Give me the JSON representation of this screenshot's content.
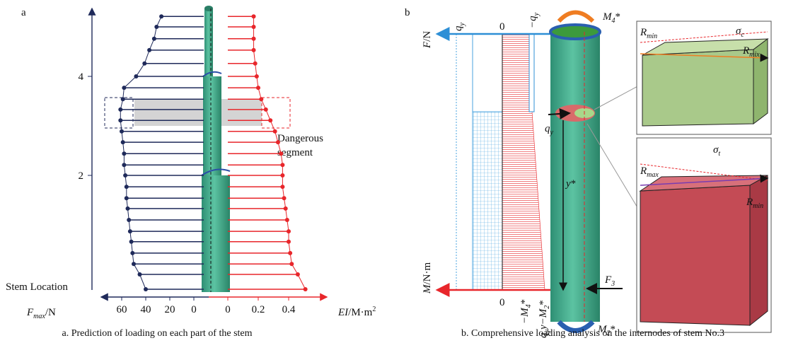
{
  "chart_data": {
    "type": "lollipop",
    "panel": "a",
    "ylabel": "Stem Location",
    "ylim": [
      -0.4,
      5.4
    ],
    "yticks": [
      2,
      4
    ],
    "locations": [
      5.21,
      5.0,
      4.76,
      4.53,
      4.26,
      4.0,
      3.77,
      3.54,
      3.33,
      3.11,
      2.89,
      2.67,
      2.44,
      2.21,
      2.0,
      1.77,
      1.54,
      1.33,
      1.1,
      0.87,
      0.66,
      0.43,
      0.21,
      0,
      -0.3
    ],
    "series": [
      {
        "name": [
          "F",
          "max",
          "/N"
        ],
        "color": "#1f2a5a",
        "side": "left",
        "xlim": [
          0,
          70
        ],
        "xticks": [
          60,
          40,
          20,
          0
        ],
        "values": [
          27,
          31,
          33,
          37,
          41,
          48,
          58,
          59,
          61,
          61,
          60,
          59,
          58,
          58,
          57,
          56,
          56,
          55,
          54,
          53,
          52,
          51,
          50,
          45,
          40
        ]
      },
      {
        "name": [
          "EI",
          "/M·m",
          "2"
        ],
        "color": "#e8262b",
        "side": "right",
        "xlim": [
          0,
          0.6
        ],
        "xticks": [
          0,
          0.2,
          0.4
        ],
        "values": [
          0.17,
          0.17,
          0.17,
          0.17,
          0.18,
          0.19,
          0.2,
          0.22,
          0.25,
          0.28,
          0.31,
          0.33,
          0.35,
          0.36,
          0.36,
          0.36,
          0.37,
          0.38,
          0.39,
          0.4,
          0.4,
          0.41,
          0.42,
          0.46,
          0.51
        ]
      }
    ],
    "annotation": [
      "Dangerous",
      "segment"
    ],
    "caption": "a. Prediction of loading on each part of the stem"
  },
  "diagram": {
    "panel": "b",
    "labels": {
      "fn": [
        "F",
        "/N"
      ],
      "qy_top": [
        "q",
        "y"
      ],
      "zero_top": "0",
      "neg_qy": [
        "−q",
        "y"
      ],
      "m4": [
        "M",
        "4",
        "*"
      ],
      "rmin_top": [
        "R",
        "min"
      ],
      "sigma_c": [
        "σ",
        "c"
      ],
      "rmix": [
        "R",
        "mix"
      ],
      "qy_mid": [
        "q",
        "y"
      ],
      "ystar": [
        "y",
        "*"
      ],
      "rmax": [
        "R",
        "max"
      ],
      "sigma_t": [
        "σ",
        "t"
      ],
      "rmin_bottom": [
        "R",
        "min"
      ],
      "f3": [
        "F",
        "3"
      ],
      "mn": [
        "M",
        "/N·m"
      ],
      "zero_bottom": "0",
      "neg_m4": [
        "−M",
        "4",
        "*"
      ],
      "qyy_m2": [
        "q",
        "y",
        "y−M",
        "2",
        "*"
      ],
      "m2": [
        "M",
        "2",
        "*"
      ]
    },
    "caption": "b. Comprehensive loading analysis on the internodes of stem No.3"
  }
}
